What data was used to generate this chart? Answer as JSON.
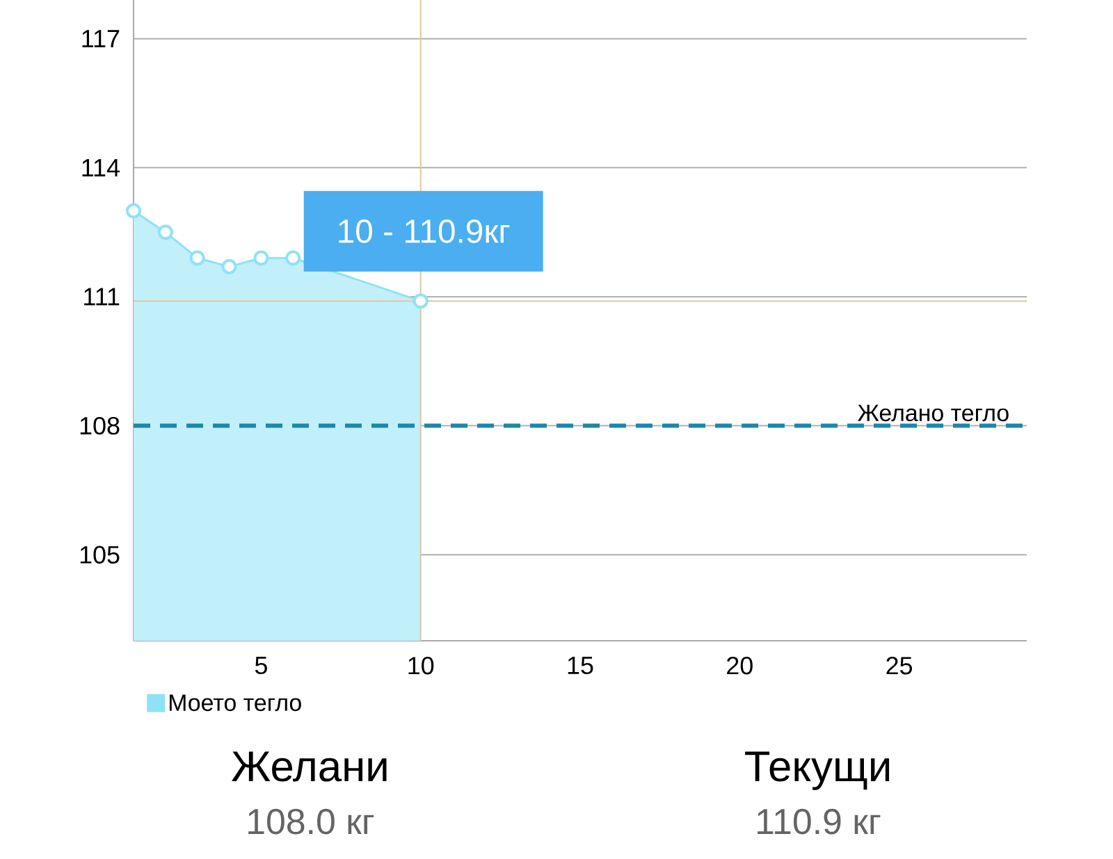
{
  "chart_data": {
    "type": "area",
    "x": [
      1,
      2,
      3,
      4,
      5,
      6,
      7,
      8,
      9,
      10
    ],
    "series": [
      {
        "name": "Моето тегло",
        "color": "#8fe2f5",
        "values": [
          113.0,
          112.5,
          111.9,
          111.7,
          111.9,
          111.9,
          null,
          null,
          null,
          110.9
        ]
      }
    ],
    "xlim": [
      1,
      29
    ],
    "ylim": [
      103,
      117.9
    ],
    "xticks": [
      5,
      10,
      15,
      20,
      25
    ],
    "yticks": [
      105,
      108,
      111,
      114,
      117
    ],
    "grid": "y",
    "marker": "circle",
    "legend": "bottom left",
    "ref_lines": [
      {
        "axis": "y",
        "value": 108,
        "label": "Желано тегло",
        "color": "#1b87ad",
        "line_style": "dashed"
      },
      {
        "axis": "x",
        "value": 10,
        "color": "#dcc8a0"
      },
      {
        "axis": "y",
        "value": 110.9,
        "color": "#dcc8a0"
      }
    ],
    "annotations": [
      {
        "text": "10 - 110.9кг",
        "x": 10,
        "y": 110.9
      },
      "Желани",
      "108.0 кг",
      "Текущи",
      "110.9 кг"
    ]
  }
}
